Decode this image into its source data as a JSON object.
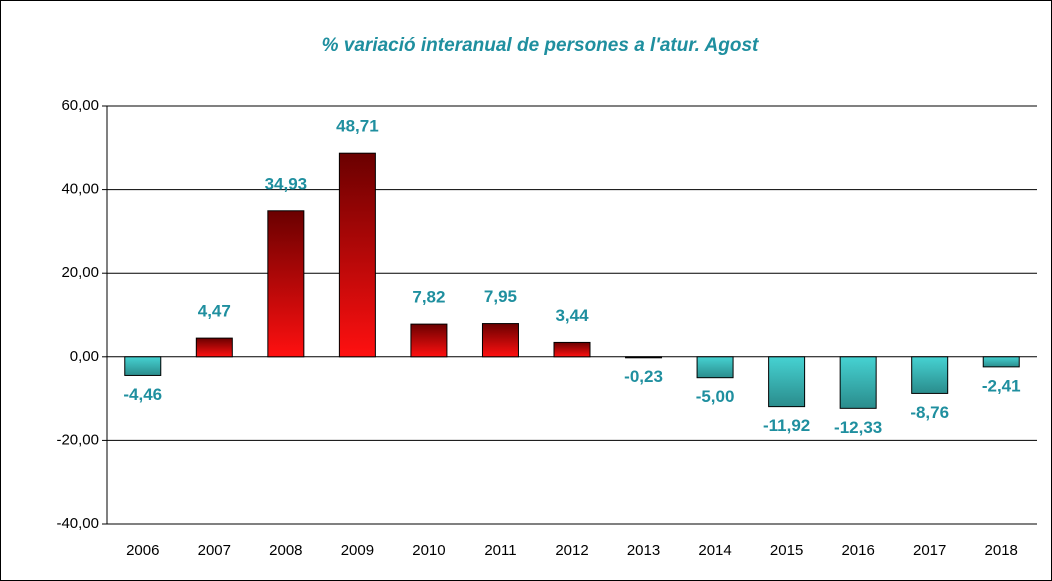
{
  "chart_data": {
    "type": "bar",
    "title": "% variació interanual de persones a l'atur. Agost",
    "categories": [
      "2006",
      "2007",
      "2008",
      "2009",
      "2010",
      "2011",
      "2012",
      "2013",
      "2014",
      "2015",
      "2016",
      "2017",
      "2018"
    ],
    "values": [
      -4.46,
      4.47,
      34.93,
      48.71,
      7.82,
      7.95,
      3.44,
      -0.23,
      -5.0,
      -11.92,
      -12.33,
      -8.76,
      -2.41
    ],
    "value_labels": [
      "-4,46",
      "4,47",
      "34,93",
      "48,71",
      "7,82",
      "7,95",
      "3,44",
      "-0,23",
      "-5,00",
      "-11,92",
      "-12,33",
      "-8,76",
      "-2,41"
    ],
    "colors": {
      "positive": [
        "#6a0000",
        "#ff1010"
      ],
      "negative": [
        "#46d2d2",
        "#2a8c8c"
      ]
    },
    "ylim": [
      -40,
      60
    ],
    "yticks": [
      {
        "value": -40,
        "label": "-40,00"
      },
      {
        "value": -20,
        "label": "-20,00"
      },
      {
        "value": 0,
        "label": "0,00"
      },
      {
        "value": 20,
        "label": "20,00"
      },
      {
        "value": 40,
        "label": "40,00"
      },
      {
        "value": 60,
        "label": "60,00"
      }
    ],
    "grid": true
  }
}
